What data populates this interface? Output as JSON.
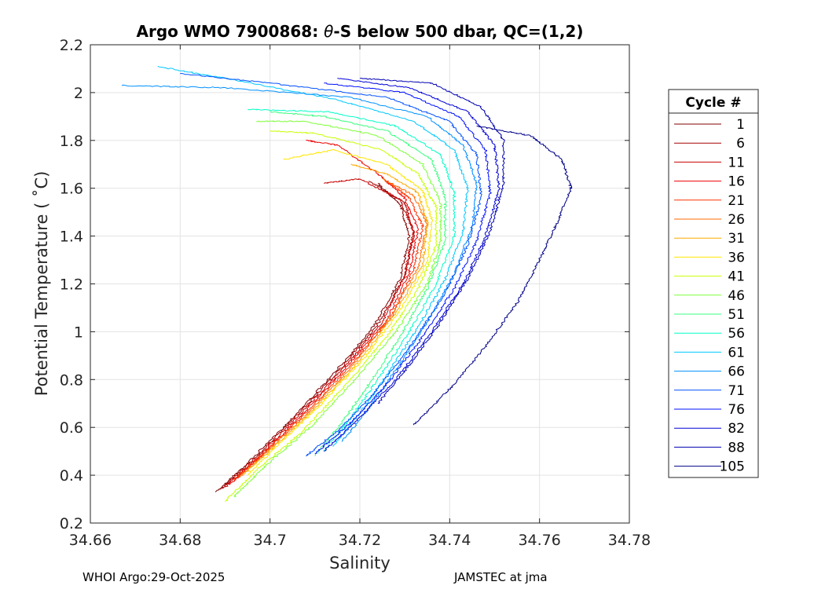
{
  "chart_data": {
    "type": "line",
    "title_prefix": "Argo WMO 7900868: ",
    "title_theta": "θ",
    "title_suffix": "-S below 500 dbar,  QC=(1,2)",
    "xlabel": "Salinity",
    "ylabel": "Potential Temperature ( ˚C)",
    "xlim": [
      34.66,
      34.78
    ],
    "ylim": [
      0.2,
      2.2
    ],
    "xticks": [
      34.66,
      34.68,
      34.7,
      34.72,
      34.74,
      34.76,
      34.78
    ],
    "xtick_labels": [
      "34.66",
      "34.68",
      "34.7",
      "34.72",
      "34.74",
      "34.76",
      "34.78"
    ],
    "yticks": [
      0.2,
      0.4,
      0.6,
      0.8,
      1.0,
      1.2,
      1.4,
      1.6,
      1.8,
      2.0,
      2.2
    ],
    "ytick_labels": [
      "0.2",
      "0.4",
      "0.6",
      "0.8",
      "1",
      "1.2",
      "1.4",
      "1.6",
      "1.8",
      "2",
      "2.2"
    ],
    "grid": true,
    "legend_title": "Cycle #",
    "legend_position": "outside-right",
    "series": [
      {
        "name": "1",
        "color": "#7f0000",
        "points": [
          [
            34.688,
            0.33
          ],
          [
            34.695,
            0.45
          ],
          [
            34.704,
            0.62
          ],
          [
            34.714,
            0.82
          ],
          [
            34.723,
            1.02
          ],
          [
            34.729,
            1.22
          ],
          [
            34.731,
            1.4
          ],
          [
            34.729,
            1.53
          ],
          [
            34.724,
            1.62
          ]
        ]
      },
      {
        "name": "6",
        "color": "#a30000",
        "points": [
          [
            34.689,
            0.34
          ],
          [
            34.696,
            0.46
          ],
          [
            34.705,
            0.63
          ],
          [
            34.715,
            0.83
          ],
          [
            34.724,
            1.03
          ],
          [
            34.73,
            1.23
          ],
          [
            34.732,
            1.41
          ],
          [
            34.73,
            1.54
          ],
          [
            34.722,
            1.63
          ]
        ]
      },
      {
        "name": "11",
        "color": "#c80000",
        "points": [
          [
            34.69,
            0.35
          ],
          [
            34.697,
            0.47
          ],
          [
            34.706,
            0.64
          ],
          [
            34.716,
            0.84
          ],
          [
            34.725,
            1.04
          ],
          [
            34.73,
            1.24
          ],
          [
            34.732,
            1.42
          ],
          [
            34.729,
            1.55
          ],
          [
            34.72,
            1.64
          ],
          [
            34.712,
            1.62
          ]
        ]
      },
      {
        "name": "16",
        "color": "#ed0000",
        "points": [
          [
            34.691,
            0.36
          ],
          [
            34.698,
            0.48
          ],
          [
            34.707,
            0.65
          ],
          [
            34.717,
            0.85
          ],
          [
            34.726,
            1.05
          ],
          [
            34.731,
            1.25
          ],
          [
            34.733,
            1.43
          ],
          [
            34.73,
            1.56
          ],
          [
            34.724,
            1.66
          ],
          [
            34.715,
            1.78
          ],
          [
            34.708,
            1.8
          ]
        ]
      },
      {
        "name": "21",
        "color": "#ff3000",
        "points": [
          [
            34.692,
            0.38
          ],
          [
            34.699,
            0.5
          ],
          [
            34.708,
            0.66
          ],
          [
            34.718,
            0.86
          ],
          [
            34.727,
            1.06
          ],
          [
            34.732,
            1.26
          ],
          [
            34.734,
            1.44
          ],
          [
            34.731,
            1.56
          ],
          [
            34.726,
            1.63
          ]
        ]
      },
      {
        "name": "26",
        "color": "#ff6a00",
        "points": [
          [
            34.693,
            0.39
          ],
          [
            34.7,
            0.51
          ],
          [
            34.709,
            0.67
          ],
          [
            34.719,
            0.87
          ],
          [
            34.727,
            1.07
          ],
          [
            34.733,
            1.27
          ],
          [
            34.735,
            1.45
          ],
          [
            34.732,
            1.57
          ],
          [
            34.725,
            1.64
          ]
        ]
      },
      {
        "name": "31",
        "color": "#ffaa00",
        "points": [
          [
            34.694,
            0.4
          ],
          [
            34.701,
            0.52
          ],
          [
            34.71,
            0.68
          ],
          [
            34.72,
            0.88
          ],
          [
            34.728,
            1.08
          ],
          [
            34.734,
            1.28
          ],
          [
            34.735,
            1.46
          ],
          [
            34.733,
            1.58
          ],
          [
            34.726,
            1.66
          ],
          [
            34.718,
            1.7
          ]
        ]
      },
      {
        "name": "36",
        "color": "#ffe600",
        "points": [
          [
            34.695,
            0.4
          ],
          [
            34.702,
            0.53
          ],
          [
            34.711,
            0.69
          ],
          [
            34.721,
            0.89
          ],
          [
            34.729,
            1.09
          ],
          [
            34.735,
            1.29
          ],
          [
            34.736,
            1.47
          ],
          [
            34.734,
            1.59
          ],
          [
            34.726,
            1.7
          ],
          [
            34.714,
            1.76
          ],
          [
            34.703,
            1.72
          ]
        ]
      },
      {
        "name": "41",
        "color": "#c8ff00",
        "points": [
          [
            34.69,
            0.29
          ],
          [
            34.697,
            0.42
          ],
          [
            34.707,
            0.58
          ],
          [
            34.717,
            0.78
          ],
          [
            34.726,
            0.98
          ],
          [
            34.733,
            1.18
          ],
          [
            34.737,
            1.36
          ],
          [
            34.737,
            1.52
          ],
          [
            34.733,
            1.66
          ],
          [
            34.725,
            1.76
          ],
          [
            34.71,
            1.83
          ],
          [
            34.7,
            1.84
          ]
        ]
      },
      {
        "name": "46",
        "color": "#7fff3a",
        "points": [
          [
            34.692,
            0.31
          ],
          [
            34.699,
            0.44
          ],
          [
            34.709,
            0.6
          ],
          [
            34.719,
            0.8
          ],
          [
            34.728,
            1.0
          ],
          [
            34.735,
            1.2
          ],
          [
            34.738,
            1.38
          ],
          [
            34.738,
            1.54
          ],
          [
            34.734,
            1.7
          ],
          [
            34.724,
            1.82
          ],
          [
            34.708,
            1.88
          ],
          [
            34.697,
            1.88
          ]
        ]
      },
      {
        "name": "51",
        "color": "#3aff7f",
        "points": [
          [
            34.71,
            0.48
          ],
          [
            34.716,
            0.62
          ],
          [
            34.722,
            0.78
          ],
          [
            34.729,
            0.98
          ],
          [
            34.735,
            1.18
          ],
          [
            34.739,
            1.38
          ],
          [
            34.739,
            1.56
          ],
          [
            34.736,
            1.72
          ],
          [
            34.726,
            1.84
          ],
          [
            34.712,
            1.9
          ],
          [
            34.7,
            1.92
          ]
        ]
      },
      {
        "name": "56",
        "color": "#00ffc8",
        "points": [
          [
            34.712,
            0.5
          ],
          [
            34.718,
            0.64
          ],
          [
            34.724,
            0.8
          ],
          [
            34.731,
            1.0
          ],
          [
            34.737,
            1.2
          ],
          [
            34.741,
            1.4
          ],
          [
            34.741,
            1.58
          ],
          [
            34.738,
            1.74
          ],
          [
            34.728,
            1.86
          ],
          [
            34.713,
            1.92
          ],
          [
            34.695,
            1.93
          ]
        ]
      },
      {
        "name": "61",
        "color": "#00c8ff",
        "points": [
          [
            34.714,
            0.52
          ],
          [
            34.72,
            0.66
          ],
          [
            34.726,
            0.82
          ],
          [
            34.733,
            1.02
          ],
          [
            34.739,
            1.22
          ],
          [
            34.743,
            1.42
          ],
          [
            34.744,
            1.6
          ],
          [
            34.741,
            1.76
          ],
          [
            34.732,
            1.88
          ],
          [
            34.715,
            1.97
          ],
          [
            34.69,
            2.06
          ],
          [
            34.675,
            2.11
          ]
        ]
      },
      {
        "name": "66",
        "color": "#0090ff",
        "points": [
          [
            34.716,
            0.54
          ],
          [
            34.722,
            0.68
          ],
          [
            34.728,
            0.84
          ],
          [
            34.735,
            1.04
          ],
          [
            34.741,
            1.24
          ],
          [
            34.745,
            1.44
          ],
          [
            34.746,
            1.62
          ],
          [
            34.743,
            1.78
          ],
          [
            34.735,
            1.9
          ],
          [
            34.718,
            1.98
          ],
          [
            34.69,
            2.02
          ],
          [
            34.667,
            2.03
          ]
        ]
      },
      {
        "name": "71",
        "color": "#0050ff",
        "points": [
          [
            34.708,
            0.48
          ],
          [
            34.716,
            0.6
          ],
          [
            34.724,
            0.76
          ],
          [
            34.732,
            0.96
          ],
          [
            34.739,
            1.16
          ],
          [
            34.744,
            1.36
          ],
          [
            34.747,
            1.56
          ],
          [
            34.746,
            1.74
          ],
          [
            34.74,
            1.88
          ],
          [
            34.726,
            1.98
          ],
          [
            34.7,
            2.04
          ],
          [
            34.68,
            2.08
          ]
        ]
      },
      {
        "name": "76",
        "color": "#0010ff",
        "points": [
          [
            34.71,
            0.49
          ],
          [
            34.718,
            0.62
          ],
          [
            34.726,
            0.78
          ],
          [
            34.734,
            0.98
          ],
          [
            34.741,
            1.18
          ],
          [
            34.746,
            1.38
          ],
          [
            34.749,
            1.58
          ],
          [
            34.748,
            1.76
          ],
          [
            34.742,
            1.9
          ],
          [
            34.73,
            2.0
          ],
          [
            34.712,
            2.04
          ]
        ]
      },
      {
        "name": "82",
        "color": "#0000d8",
        "points": [
          [
            34.712,
            0.5
          ],
          [
            34.72,
            0.64
          ],
          [
            34.728,
            0.8
          ],
          [
            34.736,
            1.0
          ],
          [
            34.743,
            1.2
          ],
          [
            34.748,
            1.4
          ],
          [
            34.751,
            1.6
          ],
          [
            34.75,
            1.78
          ],
          [
            34.744,
            1.92
          ],
          [
            34.731,
            2.02
          ],
          [
            34.715,
            2.06
          ]
        ]
      },
      {
        "name": "88",
        "color": "#0000b0",
        "points": [
          [
            34.724,
            0.7
          ],
          [
            34.731,
            0.86
          ],
          [
            34.738,
            1.04
          ],
          [
            34.744,
            1.22
          ],
          [
            34.749,
            1.42
          ],
          [
            34.752,
            1.62
          ],
          [
            34.752,
            1.8
          ],
          [
            34.747,
            1.94
          ],
          [
            34.736,
            2.04
          ],
          [
            34.72,
            2.06
          ]
        ]
      },
      {
        "name": "105",
        "color": "#000088",
        "points": [
          [
            34.732,
            0.61
          ],
          [
            34.74,
            0.76
          ],
          [
            34.748,
            0.94
          ],
          [
            34.755,
            1.12
          ],
          [
            34.76,
            1.3
          ],
          [
            34.764,
            1.46
          ],
          [
            34.767,
            1.6
          ],
          [
            34.765,
            1.72
          ],
          [
            34.758,
            1.82
          ],
          [
            34.746,
            1.86
          ]
        ]
      }
    ]
  },
  "footer": {
    "left": "WHOI Argo:29-Oct-2025",
    "right": "JAMSTEC at jma"
  }
}
